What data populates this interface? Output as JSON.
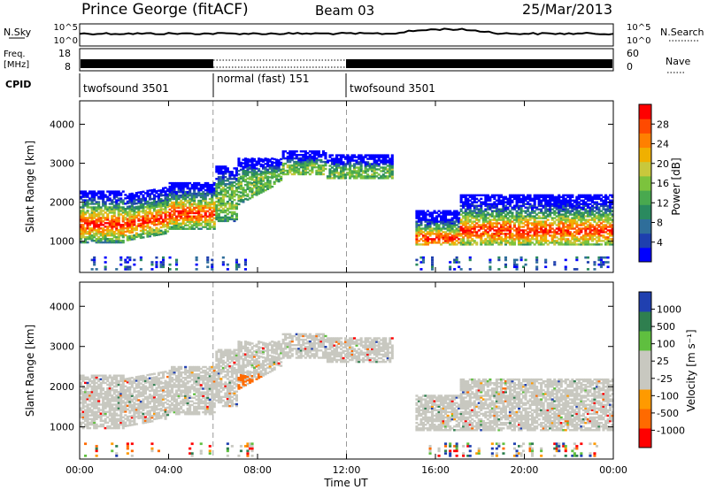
{
  "header": {
    "station": "Prince George (fitACF)",
    "beam": "Beam 03",
    "date": "25/Mar/2013"
  },
  "noise_panel": {
    "left_label": "N.Sky",
    "right_label": "N.Search",
    "left_ticks": [
      "10^5",
      "10^0"
    ],
    "right_ticks": [
      "10^5",
      "10^0"
    ]
  },
  "freq_panel": {
    "left_label_line1": "Freq.",
    "left_label_line2": "[MHz]",
    "right_label": "Nave",
    "left_ticks": [
      "18",
      "8"
    ],
    "right_ticks": [
      "60",
      "0"
    ]
  },
  "cpid": {
    "label": "CPID",
    "segments": [
      {
        "name": "twofsound 3501",
        "start": 0,
        "end": 6
      },
      {
        "name": "normal (fast) 151",
        "start": 6,
        "end": 12
      },
      {
        "name": "twofsound 3501",
        "start": 12,
        "end": 24
      }
    ]
  },
  "colors": {
    "power": [
      "#0000ff",
      "#1e3fae",
      "#2f6e9a",
      "#2a8a5f",
      "#49a94f",
      "#7cc33d",
      "#c8c83c",
      "#f0b000",
      "#ff8000",
      "#ff4a00",
      "#ff0000"
    ],
    "velocity": [
      "#ff0000",
      "#ff6a00",
      "#ff9a00",
      "#c8c8c0",
      "#c8c8c0",
      "#5fbf3f",
      "#2f7f4f",
      "#2040b0"
    ]
  },
  "chart_data": [
    {
      "type": "heatmap",
      "name": "power",
      "xlabel": "",
      "ylabel": "Slant Range [km]",
      "ylim": [
        200,
        4600
      ],
      "xlim": [
        0,
        24
      ],
      "yticks": [
        "1000",
        "2000",
        "3000",
        "4000"
      ],
      "colorbar": {
        "label": "Power [dB]",
        "ticks": [
          "4",
          "8",
          "12",
          "16",
          "20",
          "24",
          "28"
        ]
      }
    },
    {
      "type": "heatmap",
      "name": "velocity",
      "xlabel": "Time UT",
      "ylabel": "Slant Range [km]",
      "ylim": [
        200,
        4600
      ],
      "xlim": [
        0,
        24
      ],
      "yticks": [
        "1000",
        "2000",
        "3000",
        "4000"
      ],
      "xticks": [
        "00:00",
        "04:00",
        "08:00",
        "12:00",
        "16:00",
        "20:00",
        "00:00"
      ],
      "colorbar": {
        "label": "Velocity [m s⁻¹]",
        "ticks": [
          "1000",
          "500",
          "100",
          "25",
          "-25",
          "-100",
          "-500",
          "-1000"
        ]
      }
    }
  ]
}
